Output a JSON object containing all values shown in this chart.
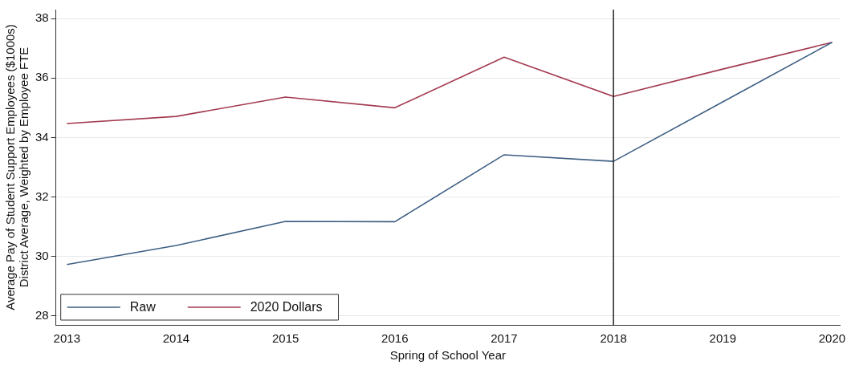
{
  "chart_data": {
    "type": "line",
    "xlabel": "Spring of School Year",
    "ylabel": "Average Pay of Student Support Employees ($1000s)\nDistrict Average, Weighted by Employee FTE",
    "x": [
      2013,
      2014,
      2015,
      2016,
      2017,
      2018,
      2019,
      2020
    ],
    "series": [
      {
        "name": "Raw",
        "color": "#3e5f84",
        "values": [
          29.73,
          30.37,
          31.18,
          31.17,
          33.42,
          33.2,
          35.2,
          37.2
        ]
      },
      {
        "name": "2020 Dollars",
        "color": "#a33a4f",
        "values": [
          34.47,
          34.71,
          35.36,
          35.0,
          36.7,
          35.38,
          36.3,
          37.2
        ]
      }
    ],
    "xlim": [
      2012.9,
      2020.07
    ],
    "xticks": [
      2013,
      2014,
      2015,
      2016,
      2017,
      2018,
      2019,
      2020
    ],
    "ylim": [
      27.7,
      38.3
    ],
    "yticks": [
      28,
      30,
      32,
      34,
      36,
      38
    ],
    "ref_lines": [
      {
        "axis": "x",
        "value": 2018,
        "color": "#222222"
      }
    ],
    "grid": "y",
    "legend": "bottom left",
    "marker": "none",
    "line_style": "solid"
  }
}
